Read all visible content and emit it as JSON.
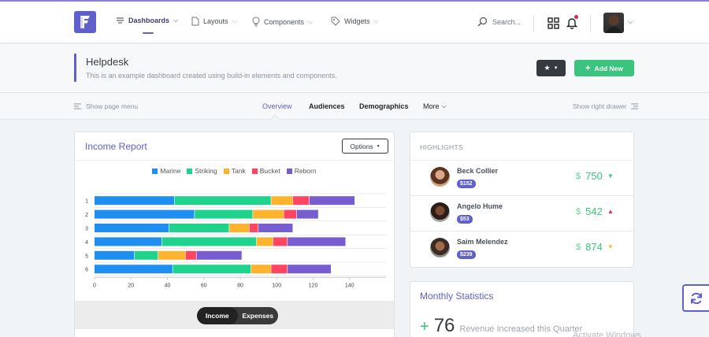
{
  "colors": {
    "accent": "#5f60c9",
    "success": "#3ac47d",
    "danger": "#d92550",
    "warning": "#f7b924",
    "dark": "#343a40"
  },
  "header": {
    "logo_letter": "F",
    "nav": [
      {
        "label": "Dashboards",
        "icon": "dashboard-icon"
      },
      {
        "label": "Layouts",
        "icon": "page-icon"
      },
      {
        "label": "Components",
        "icon": "bulb-icon"
      },
      {
        "label": "Widgets",
        "icon": "tag-icon"
      }
    ],
    "search_placeholder": "Search..."
  },
  "title": {
    "heading": "Helpdesk",
    "subheading": "This is an example dashboard created using build-in elements and components.",
    "add_button": "Add New"
  },
  "tabs": {
    "show_menu": "Show page menu",
    "items": [
      "Overview",
      "Audiences",
      "Demographics",
      "More"
    ],
    "show_drawer": "Show right drawer"
  },
  "income": {
    "title": "Income Report",
    "options_label": "Options",
    "switch": [
      "Income",
      "Expenses"
    ]
  },
  "chart_data": {
    "type": "bar",
    "orientation": "horizontal",
    "stacked": true,
    "categories": [
      "1",
      "2",
      "3",
      "4",
      "5",
      "6"
    ],
    "series": [
      {
        "name": "Marine",
        "color": "#1f8ef1",
        "values": [
          44,
          55,
          41,
          37,
          22,
          43
        ]
      },
      {
        "name": "Striking",
        "color": "#1fd38d",
        "values": [
          53,
          32,
          33,
          52,
          13,
          43
        ]
      },
      {
        "name": "Tank",
        "color": "#fdb42c",
        "values": [
          12,
          17,
          11,
          9,
          15,
          11
        ]
      },
      {
        "name": "Bucket",
        "color": "#ff4560",
        "values": [
          9,
          7,
          5,
          8,
          6,
          9
        ]
      },
      {
        "name": "Reborn",
        "color": "#775dd0",
        "values": [
          25,
          12,
          19,
          32,
          25,
          24
        ]
      }
    ],
    "xlim": [
      0,
      160
    ],
    "xticks": [
      0,
      20,
      40,
      60,
      80,
      100,
      120,
      140
    ]
  },
  "highlights": {
    "heading": "HIGHLIGHTS",
    "items": [
      {
        "name": "Beck Collier",
        "badge": "$152",
        "currency": "$",
        "value": "750",
        "trend": "down",
        "color": "#3ac47d",
        "arrow_color": "#3ac47d"
      },
      {
        "name": "Angelo Hume",
        "badge": "$53",
        "currency": "$",
        "value": "542",
        "trend": "up",
        "color": "#3ac47d",
        "arrow_color": "#d92550"
      },
      {
        "name": "Saim Melendez",
        "badge": "$239",
        "currency": "$",
        "value": "874",
        "trend": "down",
        "color": "#3ac47d",
        "arrow_color": "#f7b924"
      }
    ]
  },
  "monthly": {
    "title": "Monthly Statistics",
    "plus": "+",
    "value": "76",
    "desc": "Revenue Increased this Quarter"
  },
  "watermark": "Activate Windows"
}
